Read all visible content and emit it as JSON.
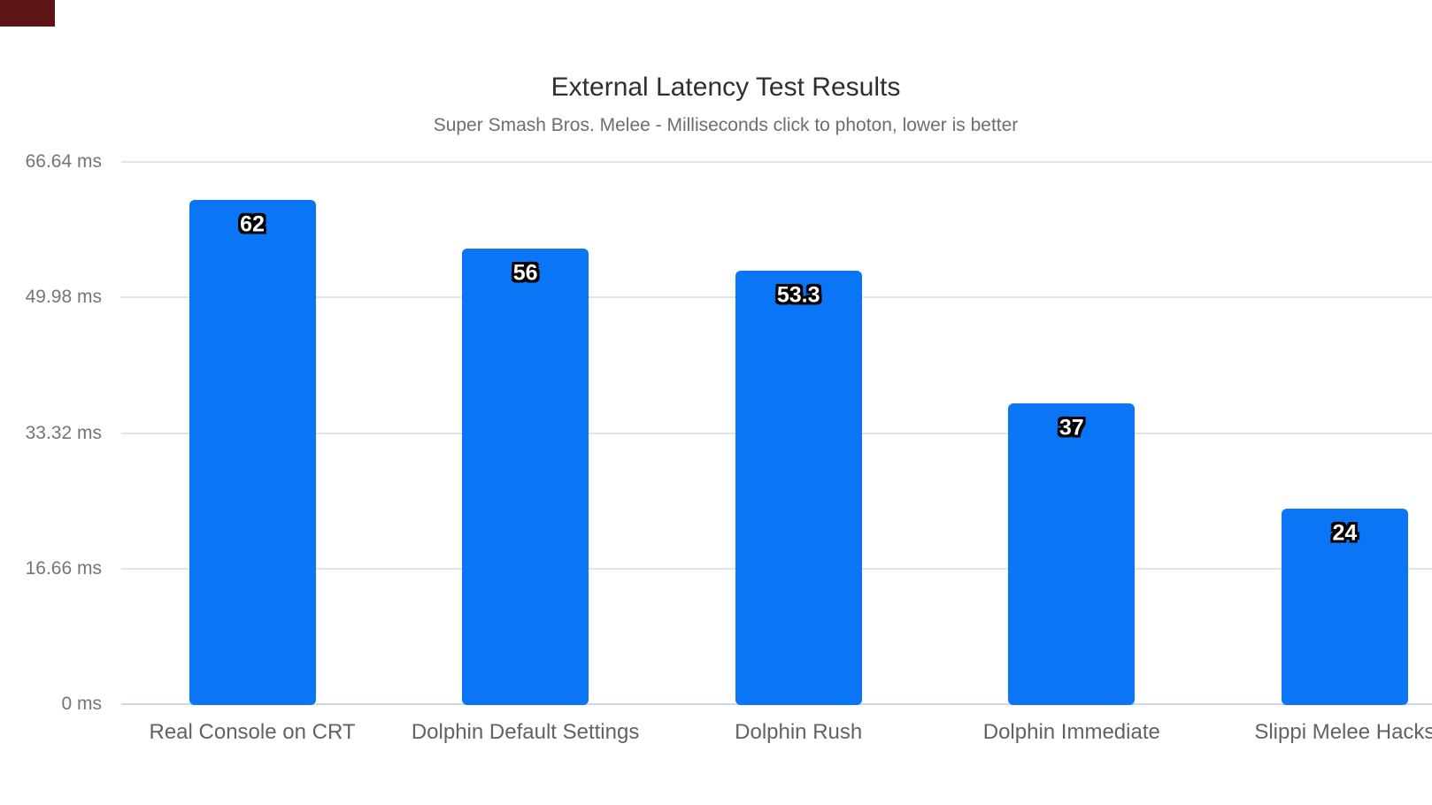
{
  "decorations": {
    "corner_block_color": "#5c1414"
  },
  "chart_data": {
    "type": "bar",
    "title": "External Latency Test Results",
    "subtitle": "Super Smash Bros. Melee - Milliseconds click to photon, lower is better",
    "categories": [
      "Real Console on CRT",
      "Dolphin Default Settings",
      "Dolphin Rush",
      "Dolphin Immediate",
      "Slippi Melee Hacks"
    ],
    "values": [
      62,
      56,
      53.3,
      37,
      24
    ],
    "value_labels": [
      "62",
      "56",
      "53.3",
      "37",
      "24"
    ],
    "unit": "ms",
    "ylim": [
      0,
      66.64
    ],
    "yticks": [
      {
        "value": 0,
        "label": "0 ms"
      },
      {
        "value": 16.66,
        "label": "16.66 ms"
      },
      {
        "value": 33.32,
        "label": "33.32 ms"
      },
      {
        "value": 49.98,
        "label": "49.98 ms"
      },
      {
        "value": 66.64,
        "label": "66.64 ms"
      }
    ],
    "grid": true,
    "legend_position": "none",
    "colors": {
      "bar": "#0a76f5",
      "gridline": "#e4e4e4",
      "baseline": "#ccd6e9",
      "title": "#2f2f2f",
      "subtitle": "#6e6e6e",
      "axis_label": "#757575",
      "category_label": "#5f6368",
      "value_label_fill": "#ffffff",
      "value_label_outline": "#000000"
    }
  }
}
